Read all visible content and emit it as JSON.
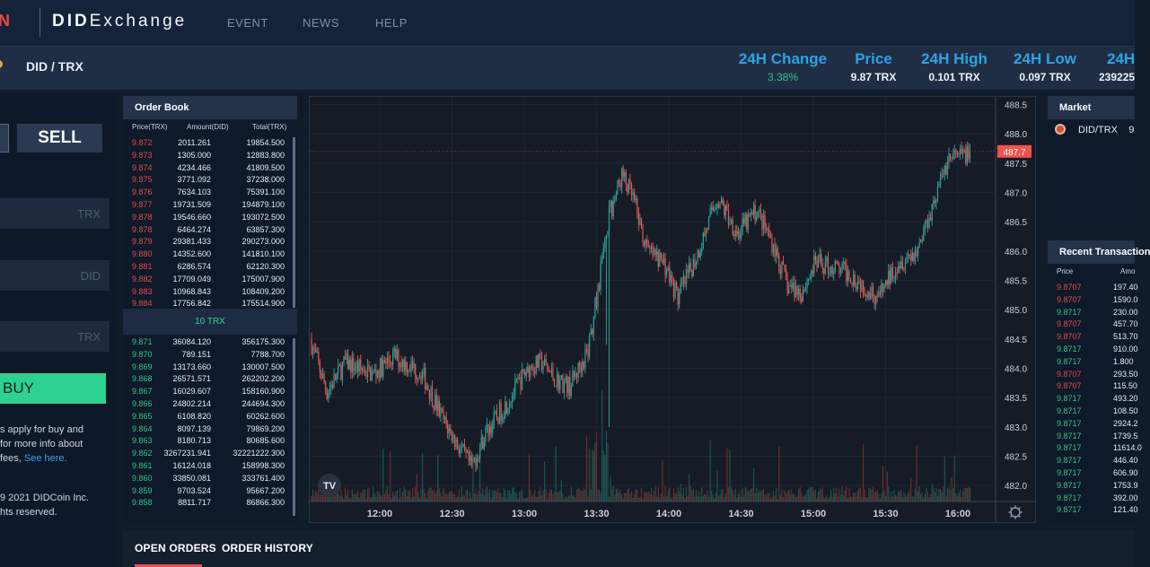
{
  "header": {
    "logo_fragment": "N",
    "brand_bold": "DID",
    "brand_rest": "Exchange",
    "nav": [
      "EVENT",
      "NEWS",
      "HELP"
    ]
  },
  "ticker": {
    "pair": "DID / TRX",
    "stats": [
      {
        "label": "24H Change",
        "value": "3.38%",
        "color": "#2fc58a"
      },
      {
        "label": "Price",
        "value": "9.87 TRX",
        "color": "#eef2f8"
      },
      {
        "label": "24H High",
        "value": "0.101 TRX",
        "color": "#eef2f8"
      },
      {
        "label": "24H Low",
        "value": "0.097 TRX",
        "color": "#eef2f8"
      },
      {
        "label": "24H",
        "value": "239225",
        "color": "#eef2f8"
      }
    ]
  },
  "trade": {
    "sell_label": "SELL",
    "fields": [
      {
        "unit": "TRX"
      },
      {
        "unit": "DID"
      },
      {
        "unit": "TRX"
      }
    ],
    "buy_label": "BUY",
    "fee_line1": "s apply for buy and",
    "fee_line2": "for more info about",
    "fee_line3": "fees,",
    "fee_link": "See here.",
    "copy_line1": "9 2021 DIDCoin Inc.",
    "copy_line2": "hts reserved."
  },
  "order_book": {
    "title": "Order Book",
    "headers": [
      "Price(TRX)",
      "Amount(DID)",
      "Total(TRX)"
    ],
    "asks": [
      [
        "9.872",
        "2011.261",
        "19854.500"
      ],
      [
        "9.873",
        "1305.000",
        "12883.800"
      ],
      [
        "9.874",
        "4234.466",
        "41809.500"
      ],
      [
        "9.875",
        "3771.092",
        "37238.000"
      ],
      [
        "9.876",
        "7634.103",
        "75391.100"
      ],
      [
        "9.877",
        "19731.509",
        "194879.100"
      ],
      [
        "9.878",
        "19546.660",
        "193072.500"
      ],
      [
        "9.878",
        "6464.274",
        "63857.300"
      ],
      [
        "9.879",
        "29381.433",
        "290273.000"
      ],
      [
        "9.880",
        "14352.600",
        "141810.100"
      ],
      [
        "9.881",
        "6286.574",
        "62120.300"
      ],
      [
        "9.882",
        "17709.049",
        "175007.900"
      ],
      [
        "9.883",
        "10968.843",
        "108409.200"
      ],
      [
        "9.884",
        "17756.842",
        "175514.900"
      ]
    ],
    "mid_label": "10 TRX",
    "bids": [
      [
        "9.871",
        "36084.120",
        "356175.300"
      ],
      [
        "9.870",
        "789.151",
        "7788.700"
      ],
      [
        "9.869",
        "13173.660",
        "130007.500"
      ],
      [
        "9.868",
        "26571.571",
        "262202.200"
      ],
      [
        "9.867",
        "16029.607",
        "158160.900"
      ],
      [
        "9.866",
        "24802.214",
        "244694.300"
      ],
      [
        "9.865",
        "6108.820",
        "60262.600"
      ],
      [
        "9.864",
        "8097.139",
        "79869.200"
      ],
      [
        "9.863",
        "8180.713",
        "80685.600"
      ],
      [
        "9.862",
        "3267231.941",
        "32221222.300"
      ],
      [
        "9.861",
        "16124.018",
        "158998.300"
      ],
      [
        "9.860",
        "33850.081",
        "333761.400"
      ],
      [
        "9.859",
        "9703.524",
        "95667.200"
      ],
      [
        "9.858",
        "8811.717",
        "86866.300"
      ]
    ]
  },
  "chart_data": {
    "type": "candlestick",
    "y_ticks": [
      "488.5",
      "488.0",
      "487.5",
      "487.0",
      "486.5",
      "486.0",
      "485.5",
      "485.0",
      "484.5",
      "484.0",
      "483.5",
      "483.0",
      "482.5",
      "482.0"
    ],
    "x_ticks": [
      "12:00",
      "12:30",
      "13:00",
      "13:30",
      "14:00",
      "14:30",
      "15:00",
      "15:30",
      "16:00"
    ],
    "last_price_label": "487.7",
    "last_price": 487.7,
    "ylim": [
      481.8,
      488.6
    ],
    "watermark": "TV",
    "path_keypoints": [
      [
        0,
        484.5
      ],
      [
        12,
        483.6
      ],
      [
        25,
        484.1
      ],
      [
        45,
        483.9
      ],
      [
        60,
        484.2
      ],
      [
        80,
        483.9
      ],
      [
        95,
        483.1
      ],
      [
        105,
        482.7
      ],
      [
        115,
        482.3
      ],
      [
        125,
        482.9
      ],
      [
        140,
        483.4
      ],
      [
        155,
        484.0
      ],
      [
        165,
        484.1
      ],
      [
        175,
        483.8
      ],
      [
        185,
        483.7
      ],
      [
        198,
        484.3
      ],
      [
        206,
        485.5
      ],
      [
        213,
        486.6
      ],
      [
        222,
        487.3
      ],
      [
        230,
        486.9
      ],
      [
        240,
        486.0
      ],
      [
        252,
        485.8
      ],
      [
        262,
        485.2
      ],
      [
        275,
        485.9
      ],
      [
        290,
        486.9
      ],
      [
        305,
        486.3
      ],
      [
        318,
        486.7
      ],
      [
        330,
        486.1
      ],
      [
        340,
        485.4
      ],
      [
        350,
        485.3
      ],
      [
        360,
        485.8
      ],
      [
        375,
        485.7
      ],
      [
        385,
        485.6
      ],
      [
        395,
        485.4
      ],
      [
        405,
        485.2
      ],
      [
        418,
        485.8
      ],
      [
        432,
        486.0
      ],
      [
        445,
        486.9
      ],
      [
        455,
        487.6
      ],
      [
        462,
        487.6
      ],
      [
        470,
        487.7
      ]
    ],
    "outliers": [
      {
        "i": 212,
        "low": 483.0
      },
      {
        "i": 210,
        "low": 484.4
      }
    ]
  },
  "market": {
    "title": "Market",
    "rows": [
      {
        "pair": "DID/TRX",
        "price": "9"
      }
    ]
  },
  "recent": {
    "title": "Recent Transaction",
    "headers": [
      "Price",
      "Amo"
    ],
    "rows": [
      [
        "9.8707",
        "197.40",
        "red"
      ],
      [
        "9.8707",
        "1590.0",
        "red"
      ],
      [
        "9.8717",
        "230.00",
        "green"
      ],
      [
        "9.8707",
        "457.70",
        "red"
      ],
      [
        "9.8707",
        "513.70",
        "red"
      ],
      [
        "9.8717",
        "910.00",
        "green"
      ],
      [
        "9.8717",
        "1.800",
        "green"
      ],
      [
        "9.8707",
        "293.50",
        "red"
      ],
      [
        "9.8707",
        "115.50",
        "red"
      ],
      [
        "9.8717",
        "493.20",
        "green"
      ],
      [
        "9.8717",
        "108.50",
        "green"
      ],
      [
        "9.8717",
        "2924.2",
        "green"
      ],
      [
        "9.8717",
        "1739.5",
        "green"
      ],
      [
        "9.8717",
        "11614.0",
        "green"
      ],
      [
        "9.8717",
        "446.40",
        "green"
      ],
      [
        "9.8717",
        "606.90",
        "green"
      ],
      [
        "9.8717",
        "1753.9",
        "green"
      ],
      [
        "9.8717",
        "392.00",
        "green"
      ],
      [
        "9.8717",
        "121.40",
        "green"
      ]
    ]
  },
  "orders": {
    "tabs": [
      "OPEN ORDERS",
      "ORDER HISTORY"
    ]
  },
  "colors": {
    "up": "#26a69a",
    "down": "#ef5350",
    "accent_blue": "#2aa4e4",
    "buy_green": "#2dd290"
  }
}
